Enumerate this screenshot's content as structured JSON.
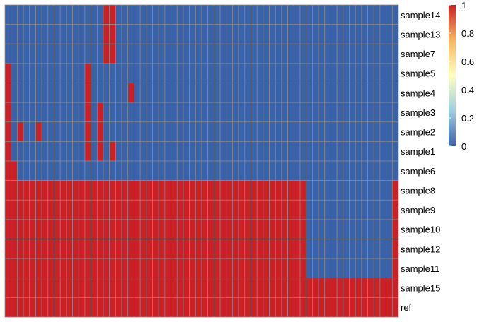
{
  "chart_data": {
    "type": "heatmap",
    "title": "",
    "xlabel": "",
    "ylabel": "",
    "rows": [
      "sample14",
      "sample13",
      "sample7",
      "sample5",
      "sample4",
      "sample3",
      "sample2",
      "sample1",
      "sample6",
      "sample8",
      "sample9",
      "sample10",
      "sample12",
      "sample11",
      "sample15",
      "ref"
    ],
    "n_columns": 64,
    "colorscale": {
      "min": 0,
      "max": 1,
      "low_color": "#3a62a8",
      "high_color": "#cb2026",
      "stops": [
        "#3a62a8",
        "#9fcde0",
        "#ffffbf",
        "#f8b55f",
        "#cb2026"
      ],
      "ticks": [
        "1",
        "0.8",
        "0.6",
        "0.4",
        "0.2",
        "0"
      ]
    },
    "legend_placement": "top-right",
    "values": [
      "0000000000000000110000000000000000000000000000000000000000000000",
      "0000000000000000110000000000000000000000000000000000000000000000",
      "0000000000000000110000000000000000000000000000000000000000000000",
      "1000000000000100000000000000000000000000000000000000000000000000",
      "1000000000000100000010000000000000000000000000000000000000000000",
      "1000000000000101000000000000000000000000000000000000000000000000",
      "1010010000000101000000000000000000000000000000000000000000000000",
      "1000000000000101010000000000000000000000000000000000000000000000",
      "1100000000000000000000000000000000000000000000000000000000000000",
      "1111111111111111111111111111111111111111111111111000000000000001",
      "1111111111111111111111111111111111111111111111111000000000000001",
      "1111111111111111111111111111111111111111111111111000000000000001",
      "1111111111111111111111111111111111111111111111111000000000000001",
      "1111111111111111111111111111111111111111111111111000000000000001",
      "1111111111111111111111111111111111111111111111111111111111111111",
      "1111111111111111111111111111111111111111111111111111111111111111"
    ]
  }
}
